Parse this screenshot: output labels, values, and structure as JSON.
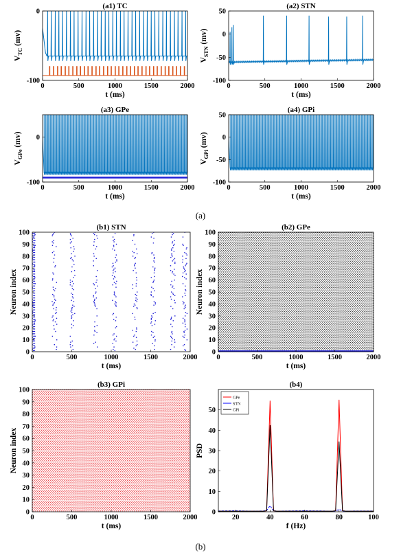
{
  "figure": {
    "caption_a": "(a)",
    "caption_b": "(b)",
    "colors": {
      "blue": "#0072BD",
      "orange": "#D95319",
      "raster_blue": "#1f1fd6",
      "raster_red": "#e8141a",
      "raster_black": "#111111",
      "psd_red": "#ff0000",
      "psd_blue": "#0000ff",
      "psd_black": "#000000"
    }
  },
  "chart_data": [
    {
      "id": "a1",
      "type": "line",
      "title": "(a1) TC",
      "xlabel": "t (ms)",
      "ylabel": "V",
      "ylabel_sub": "TC",
      "ylabel_unit": "(mv)",
      "xlim": [
        0,
        2000
      ],
      "ylim": [
        -100,
        0
      ],
      "xticks": [
        0,
        500,
        1000,
        1500,
        2000
      ],
      "yticks": [
        -100,
        0
      ],
      "series": [
        {
          "color": "#0072BD",
          "baseline": -65,
          "spike_peak": 0,
          "spike_trough": -72,
          "spike_times": [
            70,
            120,
            175,
            225,
            275,
            330,
            385,
            435,
            490,
            545,
            600,
            650,
            705,
            760,
            810,
            865,
            915,
            970,
            1020,
            1075,
            1125,
            1180,
            1235,
            1285,
            1340,
            1395,
            1445,
            1500,
            1550,
            1605,
            1660,
            1710,
            1765,
            1820,
            1870,
            1925,
            1975
          ]
        },
        {
          "color": "#D95319",
          "baseline": -93,
          "pulse_top": -80,
          "pulse_times": [
            95,
            150,
            205,
            255,
            310,
            360,
            415,
            470,
            520,
            575,
            625,
            680,
            735,
            785,
            840,
            895,
            945,
            1000,
            1050,
            1105,
            1160,
            1210,
            1265,
            1315,
            1370,
            1425,
            1475,
            1530,
            1580,
            1635,
            1690,
            1740,
            1795,
            1845,
            1900,
            1955
          ]
        }
      ]
    },
    {
      "id": "a2",
      "type": "line",
      "title": "(a2) STN",
      "xlabel": "t (ms)",
      "ylabel": "V",
      "ylabel_sub": "STN",
      "ylabel_unit": "(mv)",
      "xlim": [
        0,
        2000
      ],
      "ylim": [
        -100,
        50
      ],
      "xticks": [
        0,
        500,
        1000,
        1500,
        2000
      ],
      "yticks": [
        -100,
        -50,
        0,
        50
      ],
      "series": [
        {
          "color": "#0072BD",
          "baseline_start": -62,
          "baseline_end": -57,
          "spike_trough": -66,
          "spikes": [
            [
              20,
              5
            ],
            [
              45,
              15
            ],
            [
              65,
              20
            ],
            [
              480,
              40
            ],
            [
              800,
              40
            ],
            [
              1110,
              40
            ],
            [
              1380,
              38
            ],
            [
              1630,
              38
            ],
            [
              1850,
              40
            ]
          ]
        }
      ]
    },
    {
      "id": "a3",
      "type": "line",
      "title": "(a3) GPe",
      "xlabel": "t (ms)",
      "ylabel": "V",
      "ylabel_sub": "GPe",
      "ylabel_unit": "(mv)",
      "xlim": [
        0,
        2000
      ],
      "ylim": [
        -100,
        50
      ],
      "xticks": [
        0,
        500,
        1000,
        1500,
        2000
      ],
      "yticks": [
        -100,
        0
      ],
      "series": [
        {
          "color": "#0072BD",
          "baseline": -80,
          "spike_peak": 52,
          "interval": 12.5,
          "start": 20
        },
        {
          "color": "#1f1fd6",
          "baseline": -90
        }
      ]
    },
    {
      "id": "a4",
      "type": "line",
      "title": "(a4) GPi",
      "xlabel": "t (ms)",
      "ylabel": "V",
      "ylabel_sub": "GPi",
      "ylabel_unit": "(mv)",
      "xlim": [
        0,
        2000
      ],
      "ylim": [
        -100,
        50
      ],
      "xticks": [
        0,
        500,
        1000,
        1500,
        2000
      ],
      "yticks": [
        -100,
        -50,
        0,
        50
      ],
      "series": [
        {
          "color": "#0072BD",
          "baseline": -70,
          "spike_peak": 52,
          "interval": 12.5,
          "start": 20
        }
      ]
    },
    {
      "id": "b1",
      "type": "scatter",
      "title": "(b1) STN",
      "xlabel": "t (ms)",
      "ylabel": "Neuron index",
      "xlim": [
        0,
        2000
      ],
      "ylim": [
        0,
        100
      ],
      "xticks": [
        0,
        500,
        1000,
        1500,
        2000
      ],
      "yticks": [
        0,
        10,
        20,
        30,
        40,
        50,
        60,
        70,
        80,
        90,
        100
      ],
      "marker_color": "#1f1fd6",
      "burst_times": [
        30,
        280,
        510,
        800,
        1040,
        1300,
        1530,
        1780,
        1930
      ]
    },
    {
      "id": "b2",
      "type": "scatter",
      "title": "(b2) GPe",
      "xlabel": "t (ms)",
      "ylabel": "Neuron index",
      "xlim": [
        0,
        2000
      ],
      "ylim": [
        0,
        100
      ],
      "xticks": [
        0,
        500,
        1000,
        1500,
        2000
      ],
      "yticks": [
        0,
        10,
        20,
        30,
        40,
        50,
        60,
        70,
        80,
        90,
        100
      ],
      "marker_color": "#111111",
      "interval": 12.5
    },
    {
      "id": "b3",
      "type": "scatter",
      "title": "(b3) GPi",
      "xlabel": "t (ms)",
      "ylabel": "Neuron index",
      "xlim": [
        0,
        2000
      ],
      "ylim": [
        0,
        100
      ],
      "xticks": [
        0,
        500,
        1000,
        1500,
        2000
      ],
      "yticks": [
        0,
        10,
        20,
        30,
        40,
        50,
        60,
        70,
        80,
        90,
        100
      ],
      "marker_color": "#e8141a",
      "interval": 12.5
    },
    {
      "id": "b4",
      "type": "line",
      "title": "(b4)",
      "xlabel": "f (Hz)",
      "ylabel": "PSD",
      "xlim": [
        10,
        100
      ],
      "ylim": [
        0,
        60
      ],
      "xticks": [
        20,
        40,
        60,
        80,
        100
      ],
      "yticks": [
        0,
        10,
        20,
        30,
        40,
        50
      ],
      "legend_position": "top-left",
      "x": [
        10,
        20,
        30,
        36,
        38,
        40,
        42,
        44,
        50,
        60,
        70,
        76,
        78,
        80,
        82,
        84,
        90,
        100
      ],
      "series": [
        {
          "name": "GPe",
          "color": "#ff0000",
          "values": [
            0.3,
            0.3,
            0.3,
            0.3,
            0.5,
            54.5,
            0.5,
            0.3,
            0.3,
            0.3,
            0.3,
            0.3,
            0.5,
            55,
            0.5,
            0.3,
            0.3,
            0.3
          ]
        },
        {
          "name": "STN",
          "color": "#0000ff",
          "values": [
            0.4,
            0.5,
            0.3,
            0.4,
            0.6,
            3.0,
            0.5,
            0.3,
            0.4,
            0.5,
            0.4,
            0.3,
            0.4,
            1.2,
            0.4,
            0.3,
            0.4,
            0.4
          ]
        },
        {
          "name": "GPi",
          "color": "#000000",
          "values": [
            0.3,
            0.3,
            0.3,
            0.3,
            0.5,
            42.5,
            0.5,
            0.3,
            0.3,
            0.3,
            0.3,
            0.3,
            0.5,
            34.5,
            0.5,
            0.3,
            0.3,
            0.3
          ]
        }
      ]
    }
  ]
}
